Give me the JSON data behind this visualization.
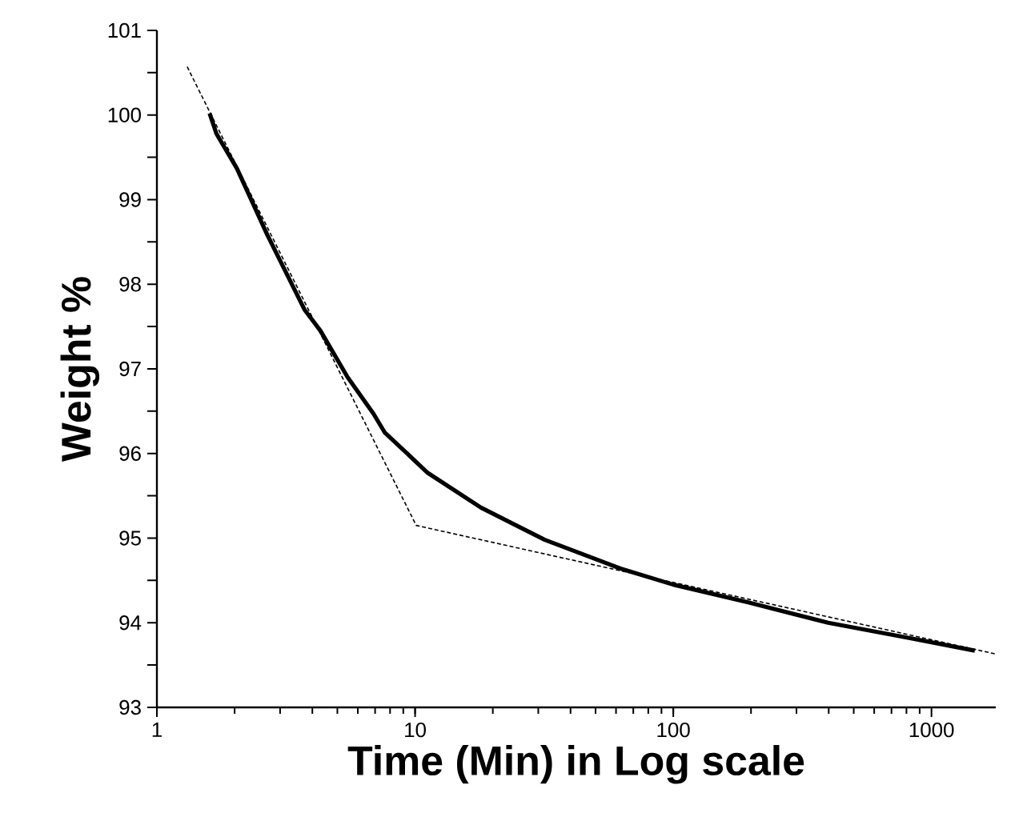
{
  "chart_data": {
    "type": "line",
    "xlabel": "Time (Min) in Log scale",
    "ylabel": "Weight %",
    "log": "x",
    "marker": "none",
    "xlim": [
      1,
      1775
    ],
    "ylim": [
      93,
      101
    ],
    "xticks": [
      1,
      10,
      100,
      1000
    ],
    "yticks": [
      93,
      {
        "value": 93.5,
        "label": null
      },
      94,
      {
        "value": 94.5,
        "label": null
      },
      95,
      {
        "value": 95.5,
        "label": null
      },
      96,
      {
        "value": 96.5,
        "label": null
      },
      97,
      {
        "value": 97.5,
        "label": null
      },
      98,
      {
        "value": 98.5,
        "label": null
      },
      99,
      {
        "value": 99.5,
        "label": null
      },
      100,
      {
        "value": 100.5,
        "label": null
      },
      101
    ],
    "series": [
      {
        "color": "#000000",
        "line_style": "solid",
        "x": [
          1.6,
          1.7,
          2.04,
          2.68,
          3.73,
          4.3,
          5.48,
          6.9,
          7.62,
          11.2,
          18,
          31.8,
          62.4,
          100,
          195,
          398,
          818,
          1472
        ],
        "values": [
          100.02,
          99.78,
          99.37,
          98.58,
          97.7,
          97.45,
          96.9,
          96.47,
          96.25,
          95.77,
          95.36,
          94.98,
          94.64,
          94.45,
          94.24,
          94.0,
          93.82,
          93.67
        ]
      },
      {
        "color": "#000000",
        "line_style": "dashed",
        "x": [
          1.31,
          10.1,
          1775
        ],
        "values": [
          100.57,
          95.15,
          93.63
        ]
      }
    ]
  }
}
